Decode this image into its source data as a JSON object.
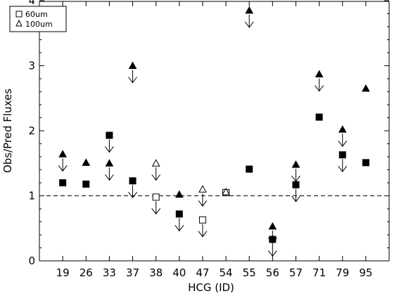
{
  "chart_data": {
    "type": "scatter",
    "xlabel": "HCG (ID)",
    "ylabel": "Obs/Pred Fluxes",
    "ylim": [
      0,
      4
    ],
    "yticks": [
      "0",
      "1",
      "2",
      "3",
      "4"
    ],
    "categories": [
      "19",
      "26",
      "33",
      "37",
      "38",
      "40",
      "47",
      "54",
      "55",
      "56",
      "57",
      "71",
      "79",
      "95"
    ],
    "reference_line": 1,
    "legend": [
      {
        "name": "60um",
        "marker": "square"
      },
      {
        "name": "100um",
        "marker": "triangle"
      }
    ],
    "series": [
      {
        "name": "60um",
        "marker": "square",
        "points": [
          {
            "x": "19",
            "y": 1.2,
            "filled": true,
            "upper_limit": false
          },
          {
            "x": "26",
            "y": 1.18,
            "filled": true,
            "upper_limit": false
          },
          {
            "x": "33",
            "y": 1.93,
            "filled": true,
            "upper_limit": true
          },
          {
            "x": "37",
            "y": 1.23,
            "filled": true,
            "upper_limit": true
          },
          {
            "x": "38",
            "y": 0.98,
            "filled": false,
            "upper_limit": true
          },
          {
            "x": "40",
            "y": 0.72,
            "filled": true,
            "upper_limit": true
          },
          {
            "x": "47",
            "y": 0.63,
            "filled": false,
            "upper_limit": true
          },
          {
            "x": "54",
            "y": 1.05,
            "filled": false,
            "upper_limit": false
          },
          {
            "x": "55",
            "y": 1.41,
            "filled": true,
            "upper_limit": false
          },
          {
            "x": "56",
            "y": 0.33,
            "filled": true,
            "upper_limit": true
          },
          {
            "x": "57",
            "y": 1.17,
            "filled": true,
            "upper_limit": true
          },
          {
            "x": "71",
            "y": 2.21,
            "filled": true,
            "upper_limit": false
          },
          {
            "x": "79",
            "y": 1.63,
            "filled": true,
            "upper_limit": true
          },
          {
            "x": "95",
            "y": 1.51,
            "filled": true,
            "upper_limit": false
          }
        ]
      },
      {
        "name": "100um",
        "marker": "triangle",
        "points": [
          {
            "x": "19",
            "y": 1.64,
            "filled": true,
            "upper_limit": true
          },
          {
            "x": "26",
            "y": 1.51,
            "filled": true,
            "upper_limit": false
          },
          {
            "x": "33",
            "y": 1.5,
            "filled": true,
            "upper_limit": true
          },
          {
            "x": "37",
            "y": 3.0,
            "filled": true,
            "upper_limit": true
          },
          {
            "x": "38",
            "y": 1.5,
            "filled": false,
            "upper_limit": true
          },
          {
            "x": "40",
            "y": 1.02,
            "filled": true,
            "upper_limit": false
          },
          {
            "x": "47",
            "y": 1.1,
            "filled": false,
            "upper_limit": true
          },
          {
            "x": "54",
            "y": 1.06,
            "filled": false,
            "upper_limit": false
          },
          {
            "x": "55",
            "y": 3.85,
            "filled": true,
            "upper_limit": true
          },
          {
            "x": "56",
            "y": 0.53,
            "filled": true,
            "upper_limit": true
          },
          {
            "x": "57",
            "y": 1.48,
            "filled": true,
            "upper_limit": true
          },
          {
            "x": "71",
            "y": 2.87,
            "filled": true,
            "upper_limit": true
          },
          {
            "x": "79",
            "y": 2.02,
            "filled": true,
            "upper_limit": true
          },
          {
            "x": "95",
            "y": 2.65,
            "filled": true,
            "upper_limit": false
          }
        ]
      }
    ]
  }
}
